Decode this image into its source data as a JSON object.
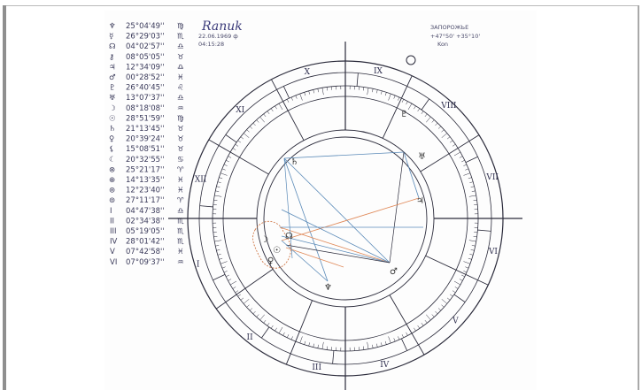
{
  "header": {
    "signature": "Ranuk",
    "date": "22.06.1969 ф",
    "time": "04:15:28",
    "city": "ЗАПОРОЖЬЕ",
    "coords": "+47°50' +35°10'",
    "region": "Kon"
  },
  "planets": [
    {
      "icon": "neptune-icon",
      "glyph": "♆",
      "value": "25°04'49''",
      "sign": "♍"
    },
    {
      "icon": "mercury-icon",
      "glyph": "☿",
      "value": "26°29'03''",
      "sign": "♏"
    },
    {
      "icon": "ascending-node-icon",
      "glyph": "☊",
      "value": "04°02'57''",
      "sign": "♎"
    },
    {
      "icon": "chiron-icon",
      "glyph": "⚷",
      "value": "08°05'05''",
      "sign": "♉"
    },
    {
      "icon": "jupiter-icon",
      "glyph": "♃",
      "value": "12°34'09''",
      "sign": "♎"
    },
    {
      "icon": "mars-icon",
      "glyph": "♂",
      "value": "00°28'52''",
      "sign": "♓"
    },
    {
      "icon": "pluto-icon",
      "glyph": "♇",
      "value": "26°40'45''",
      "sign": "♌"
    },
    {
      "icon": "uranus-icon",
      "glyph": "♅",
      "value": "13°07'37''",
      "sign": "♎"
    },
    {
      "icon": "moon-icon",
      "glyph": "☽",
      "value": "08°18'08''",
      "sign": "♒"
    },
    {
      "icon": "sun-icon",
      "glyph": "☉",
      "value": "28°51'59''",
      "sign": "♍"
    },
    {
      "icon": "saturn-icon",
      "glyph": "♄",
      "value": "21°13'45''",
      "sign": "♉"
    },
    {
      "icon": "venus-icon",
      "glyph": "♀",
      "value": "20°39'24''",
      "sign": "♉"
    },
    {
      "icon": "lilith-icon",
      "glyph": "⚸",
      "value": "15°08'51''",
      "sign": "♉"
    },
    {
      "icon": "selena-icon",
      "glyph": "☾",
      "value": "20°32'55''",
      "sign": "♋"
    },
    {
      "icon": "fortune-icon",
      "glyph": "⊗",
      "value": "25°21'17''",
      "sign": "♈"
    },
    {
      "icon": "vertex-icon",
      "glyph": "⊕",
      "value": "14°13'35''",
      "sign": "♓"
    },
    {
      "icon": "part-icon",
      "glyph": "⊛",
      "value": "12°23'40''",
      "sign": "♓"
    },
    {
      "icon": "point-icon",
      "glyph": "⊚",
      "value": "27°11'17''",
      "sign": "♈"
    }
  ],
  "houses": [
    {
      "num": "I",
      "value": "04°47'38''",
      "sign": "♎"
    },
    {
      "num": "II",
      "value": "02°34'38''",
      "sign": "♏"
    },
    {
      "num": "III",
      "value": "05°19'05''",
      "sign": "♏"
    },
    {
      "num": "IV",
      "value": "28°01'42''",
      "sign": "♏"
    },
    {
      "num": "V",
      "value": "07°42'58''",
      "sign": "♓"
    },
    {
      "num": "VI",
      "value": "07°09'37''",
      "sign": "♒"
    }
  ],
  "wheel_labels": [
    "I",
    "II",
    "III",
    "IV",
    "V",
    "VI",
    "VII",
    "VIII",
    "IX",
    "X",
    "XI",
    "XII"
  ],
  "colors": {
    "blue_aspect": "#5a8ab8",
    "orange_aspect": "#e08a5a",
    "ink": "#2b2b3b"
  }
}
